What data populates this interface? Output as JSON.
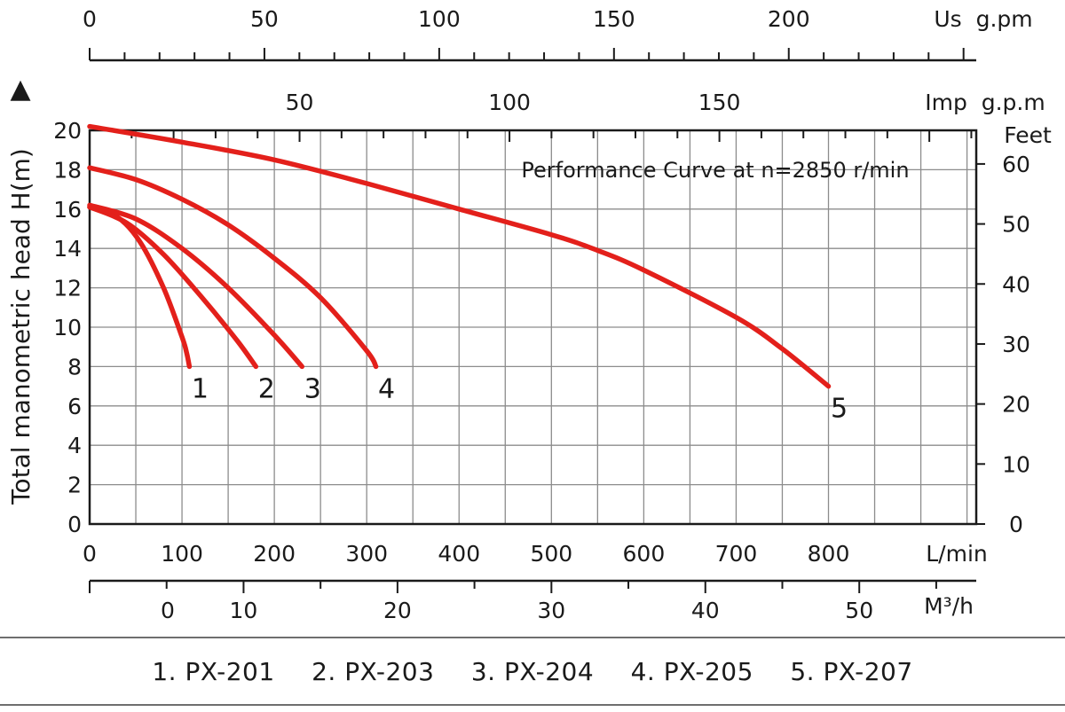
{
  "chart_data": {
    "type": "line",
    "title": "Performance Curve at n=2850 r/min",
    "ylabel": "Total manometric head H(m)",
    "y_arrow": "▲",
    "xlabel": "L/min",
    "x_ticks": [
      0,
      100,
      200,
      300,
      400,
      500,
      600,
      700,
      800
    ],
    "xlim": [
      0,
      960
    ],
    "ylim": [
      0,
      20
    ],
    "y_ticks": [
      0,
      2,
      4,
      6,
      8,
      10,
      12,
      14,
      16,
      18,
      20
    ],
    "grid": true,
    "right_axis": {
      "label": "Feet",
      "ticks": [
        0,
        10,
        20,
        30,
        40,
        50,
        60
      ],
      "feet_per_meter": 3.28
    },
    "top_axis_us": {
      "label": "Us  g.pm",
      "ticks": [
        0,
        50,
        100,
        150,
        200
      ],
      "lpm_per_unit": 3.785
    },
    "top_axis_imp": {
      "label": "Imp  g.p.m",
      "ticks": [
        50,
        100,
        150
      ],
      "lpm_per_unit": 4.546
    },
    "bottom_axis_m3h": {
      "label": "M³/h",
      "ticks": [
        0,
        10,
        20,
        30,
        40,
        50
      ],
      "lpm_per_unit": 16.667
    },
    "series": [
      {
        "name": "1",
        "model": "PX-201",
        "x": [
          0,
          30,
          55,
          80,
          100,
          105,
          108
        ],
        "y": [
          16.1,
          15.6,
          14.3,
          12.0,
          9.5,
          8.7,
          8.0
        ]
      },
      {
        "name": "2",
        "model": "PX-203",
        "x": [
          0,
          40,
          80,
          120,
          160,
          180
        ],
        "y": [
          16.1,
          15.3,
          13.7,
          11.6,
          9.3,
          8.0
        ]
      },
      {
        "name": "3",
        "model": "PX-204",
        "x": [
          0,
          50,
          100,
          150,
          200,
          230
        ],
        "y": [
          16.2,
          15.5,
          14.0,
          12.0,
          9.6,
          8.0
        ]
      },
      {
        "name": "4",
        "model": "PX-205",
        "x": [
          0,
          50,
          100,
          150,
          200,
          250,
          300,
          310
        ],
        "y": [
          18.1,
          17.5,
          16.5,
          15.2,
          13.5,
          11.5,
          8.8,
          8.0
        ]
      },
      {
        "name": "5",
        "model": "PX-207",
        "x": [
          0,
          100,
          200,
          300,
          400,
          500,
          550,
          600,
          700,
          750,
          800
        ],
        "y": [
          20.2,
          19.4,
          18.5,
          17.3,
          16.0,
          14.7,
          13.9,
          12.9,
          10.5,
          8.9,
          7.0
        ]
      }
    ],
    "series_color": "#e3201b"
  },
  "legend": {
    "items": [
      "1. PX-201",
      "2. PX-203",
      "3. PX-204",
      "4. PX-205",
      "5. PX-207"
    ]
  }
}
